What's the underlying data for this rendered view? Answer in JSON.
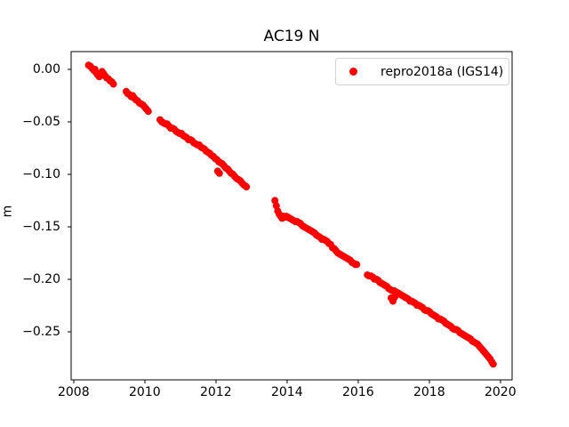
{
  "figure": {
    "background": "#ffffff",
    "text_color": "#000000"
  },
  "chart_data": {
    "type": "scatter",
    "title": "AC19 N",
    "xlabel": "",
    "ylabel": "m",
    "grid": false,
    "xlim": [
      2007.93,
      2020.33
    ],
    "ylim": [
      -0.296,
      0.017
    ],
    "x_ticks": [
      2008,
      2010,
      2012,
      2014,
      2016,
      2018,
      2020
    ],
    "x_tick_labels": [
      "2008",
      "2010",
      "2012",
      "2014",
      "2016",
      "2018",
      "2020"
    ],
    "y_ticks": [
      0.0,
      -0.05,
      -0.1,
      -0.15,
      -0.2,
      -0.25
    ],
    "y_tick_labels": [
      "0.00",
      "−0.05",
      "−0.10",
      "−0.15",
      "−0.20",
      "−0.25"
    ],
    "legend": {
      "position": "upper right",
      "entries": [
        {
          "label": "repro2018a (IGS14)",
          "marker": "point",
          "color": "#ff0000"
        }
      ]
    },
    "series": [
      {
        "name": "repro2018a (IGS14)",
        "color": "#ff0000",
        "marker": "point",
        "marker_px": 8,
        "points": [
          [
            2008.42,
            0.004
          ],
          [
            2008.47,
            0.003
          ],
          [
            2008.52,
            0.001
          ],
          [
            2008.57,
            -0.001
          ],
          [
            2008.6,
            0.0
          ],
          [
            2008.63,
            -0.003
          ],
          [
            2008.67,
            -0.005
          ],
          [
            2008.72,
            -0.007
          ],
          [
            2008.76,
            -0.006
          ],
          [
            2008.8,
            -0.002
          ],
          [
            2008.84,
            -0.004
          ],
          [
            2008.88,
            -0.006
          ],
          [
            2008.93,
            -0.008
          ],
          [
            2008.98,
            -0.009
          ],
          [
            2009.03,
            -0.011
          ],
          [
            2009.08,
            -0.012
          ],
          [
            2009.12,
            -0.014
          ],
          [
            2009.48,
            -0.021
          ],
          [
            2009.52,
            -0.023
          ],
          [
            2009.57,
            -0.024
          ],
          [
            2009.62,
            -0.026
          ],
          [
            2009.66,
            -0.025
          ],
          [
            2009.7,
            -0.027
          ],
          [
            2009.75,
            -0.029
          ],
          [
            2009.8,
            -0.03
          ],
          [
            2009.85,
            -0.032
          ],
          [
            2009.9,
            -0.033
          ],
          [
            2009.95,
            -0.034
          ],
          [
            2010.0,
            -0.036
          ],
          [
            2010.05,
            -0.038
          ],
          [
            2010.1,
            -0.04
          ],
          [
            2010.43,
            -0.048
          ],
          [
            2010.48,
            -0.05
          ],
          [
            2010.53,
            -0.051
          ],
          [
            2010.58,
            -0.052
          ],
          [
            2010.63,
            -0.052
          ],
          [
            2010.68,
            -0.054
          ],
          [
            2010.73,
            -0.056
          ],
          [
            2010.78,
            -0.056
          ],
          [
            2010.83,
            -0.057
          ],
          [
            2010.88,
            -0.059
          ],
          [
            2010.93,
            -0.06
          ],
          [
            2010.98,
            -0.061
          ],
          [
            2011.03,
            -0.061
          ],
          [
            2011.08,
            -0.063
          ],
          [
            2011.13,
            -0.064
          ],
          [
            2011.18,
            -0.065
          ],
          [
            2011.23,
            -0.067
          ],
          [
            2011.28,
            -0.067
          ],
          [
            2011.33,
            -0.068
          ],
          [
            2011.38,
            -0.07
          ],
          [
            2011.43,
            -0.071
          ],
          [
            2011.48,
            -0.072
          ],
          [
            2011.53,
            -0.072
          ],
          [
            2011.58,
            -0.074
          ],
          [
            2011.63,
            -0.075
          ],
          [
            2011.68,
            -0.076
          ],
          [
            2011.73,
            -0.078
          ],
          [
            2011.78,
            -0.079
          ],
          [
            2011.83,
            -0.08
          ],
          [
            2011.88,
            -0.082
          ],
          [
            2011.93,
            -0.083
          ],
          [
            2011.98,
            -0.085
          ],
          [
            2012.03,
            -0.086
          ],
          [
            2012.05,
            -0.097
          ],
          [
            2012.08,
            -0.088
          ],
          [
            2012.1,
            -0.099
          ],
          [
            2012.13,
            -0.089
          ],
          [
            2012.18,
            -0.09
          ],
          [
            2012.23,
            -0.092
          ],
          [
            2012.28,
            -0.094
          ],
          [
            2012.33,
            -0.095
          ],
          [
            2012.38,
            -0.097
          ],
          [
            2012.43,
            -0.099
          ],
          [
            2012.48,
            -0.1
          ],
          [
            2012.53,
            -0.102
          ],
          [
            2012.58,
            -0.104
          ],
          [
            2012.63,
            -0.105
          ],
          [
            2012.68,
            -0.106
          ],
          [
            2012.73,
            -0.108
          ],
          [
            2012.78,
            -0.11
          ],
          [
            2012.83,
            -0.111
          ],
          [
            2012.86,
            -0.112
          ],
          [
            2013.66,
            -0.125
          ],
          [
            2013.7,
            -0.13
          ],
          [
            2013.74,
            -0.135
          ],
          [
            2013.78,
            -0.138
          ],
          [
            2013.82,
            -0.14
          ],
          [
            2013.86,
            -0.142
          ],
          [
            2013.9,
            -0.14
          ],
          [
            2013.94,
            -0.141
          ],
          [
            2013.98,
            -0.14
          ],
          [
            2014.03,
            -0.141
          ],
          [
            2014.08,
            -0.142
          ],
          [
            2014.13,
            -0.143
          ],
          [
            2014.18,
            -0.144
          ],
          [
            2014.23,
            -0.145
          ],
          [
            2014.28,
            -0.145
          ],
          [
            2014.33,
            -0.146
          ],
          [
            2014.38,
            -0.147
          ],
          [
            2014.43,
            -0.149
          ],
          [
            2014.48,
            -0.15
          ],
          [
            2014.53,
            -0.151
          ],
          [
            2014.58,
            -0.152
          ],
          [
            2014.63,
            -0.153
          ],
          [
            2014.68,
            -0.154
          ],
          [
            2014.73,
            -0.155
          ],
          [
            2014.78,
            -0.156
          ],
          [
            2014.83,
            -0.158
          ],
          [
            2014.88,
            -0.159
          ],
          [
            2014.93,
            -0.16
          ],
          [
            2014.98,
            -0.162
          ],
          [
            2015.03,
            -0.162
          ],
          [
            2015.08,
            -0.163
          ],
          [
            2015.13,
            -0.164
          ],
          [
            2015.18,
            -0.166
          ],
          [
            2015.23,
            -0.167
          ],
          [
            2015.28,
            -0.17
          ],
          [
            2015.33,
            -0.171
          ],
          [
            2015.38,
            -0.173
          ],
          [
            2015.43,
            -0.175
          ],
          [
            2015.48,
            -0.176
          ],
          [
            2015.53,
            -0.177
          ],
          [
            2015.58,
            -0.178
          ],
          [
            2015.63,
            -0.179
          ],
          [
            2015.68,
            -0.18
          ],
          [
            2015.73,
            -0.181
          ],
          [
            2015.78,
            -0.182
          ],
          [
            2015.83,
            -0.184
          ],
          [
            2015.88,
            -0.185
          ],
          [
            2015.92,
            -0.186
          ],
          [
            2015.96,
            -0.186
          ],
          [
            2016.26,
            -0.196
          ],
          [
            2016.31,
            -0.197
          ],
          [
            2016.36,
            -0.197
          ],
          [
            2016.41,
            -0.198
          ],
          [
            2016.46,
            -0.2
          ],
          [
            2016.51,
            -0.2
          ],
          [
            2016.56,
            -0.201
          ],
          [
            2016.61,
            -0.203
          ],
          [
            2016.66,
            -0.204
          ],
          [
            2016.71,
            -0.205
          ],
          [
            2016.76,
            -0.206
          ],
          [
            2016.81,
            -0.207
          ],
          [
            2016.86,
            -0.209
          ],
          [
            2016.91,
            -0.21
          ],
          [
            2016.93,
            -0.218
          ],
          [
            2016.96,
            -0.211
          ],
          [
            2016.98,
            -0.221
          ],
          [
            2017.01,
            -0.211
          ],
          [
            2017.03,
            -0.217
          ],
          [
            2017.06,
            -0.212
          ],
          [
            2017.11,
            -0.213
          ],
          [
            2017.16,
            -0.214
          ],
          [
            2017.21,
            -0.215
          ],
          [
            2017.26,
            -0.216
          ],
          [
            2017.31,
            -0.217
          ],
          [
            2017.36,
            -0.218
          ],
          [
            2017.41,
            -0.219
          ],
          [
            2017.46,
            -0.221
          ],
          [
            2017.51,
            -0.221
          ],
          [
            2017.56,
            -0.222
          ],
          [
            2017.61,
            -0.223
          ],
          [
            2017.66,
            -0.225
          ],
          [
            2017.71,
            -0.225
          ],
          [
            2017.76,
            -0.226
          ],
          [
            2017.81,
            -0.227
          ],
          [
            2017.86,
            -0.229
          ],
          [
            2017.91,
            -0.23
          ],
          [
            2017.96,
            -0.23
          ],
          [
            2018.01,
            -0.231
          ],
          [
            2018.06,
            -0.233
          ],
          [
            2018.11,
            -0.234
          ],
          [
            2018.16,
            -0.235
          ],
          [
            2018.21,
            -0.236
          ],
          [
            2018.26,
            -0.238
          ],
          [
            2018.31,
            -0.238
          ],
          [
            2018.36,
            -0.239
          ],
          [
            2018.41,
            -0.24
          ],
          [
            2018.46,
            -0.242
          ],
          [
            2018.51,
            -0.243
          ],
          [
            2018.56,
            -0.244
          ],
          [
            2018.61,
            -0.245
          ],
          [
            2018.66,
            -0.247
          ],
          [
            2018.71,
            -0.248
          ],
          [
            2018.76,
            -0.248
          ],
          [
            2018.81,
            -0.249
          ],
          [
            2018.86,
            -0.251
          ],
          [
            2018.91,
            -0.252
          ],
          [
            2018.96,
            -0.253
          ],
          [
            2019.01,
            -0.254
          ],
          [
            2019.06,
            -0.255
          ],
          [
            2019.11,
            -0.256
          ],
          [
            2019.16,
            -0.257
          ],
          [
            2019.21,
            -0.259
          ],
          [
            2019.26,
            -0.26
          ],
          [
            2019.31,
            -0.261
          ],
          [
            2019.36,
            -0.262
          ],
          [
            2019.41,
            -0.264
          ],
          [
            2019.46,
            -0.266
          ],
          [
            2019.51,
            -0.268
          ],
          [
            2019.56,
            -0.27
          ],
          [
            2019.61,
            -0.272
          ],
          [
            2019.66,
            -0.274
          ],
          [
            2019.71,
            -0.276
          ],
          [
            2019.76,
            -0.279
          ],
          [
            2019.8,
            -0.281
          ]
        ]
      }
    ]
  }
}
